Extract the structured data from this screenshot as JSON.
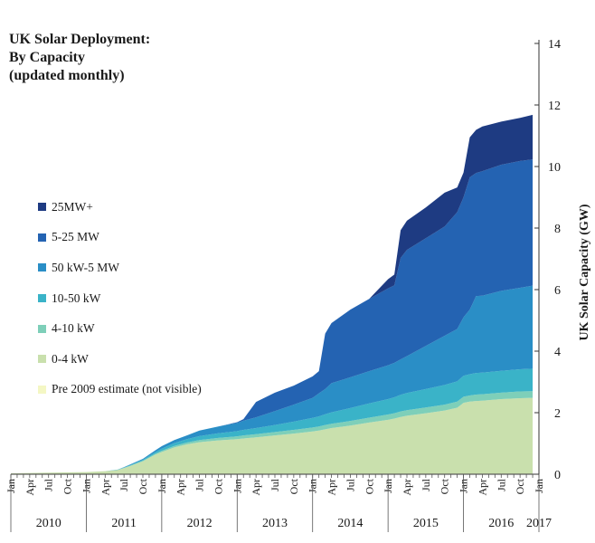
{
  "chart_data": {
    "type": "area",
    "stacked": true,
    "title_lines": [
      "UK Solar Deployment:",
      "By Capacity",
      "(updated monthly)"
    ],
    "ylabel": "UK Solar Capacity (GW)",
    "ylim": [
      0,
      14
    ],
    "yticks": [
      0,
      2,
      4,
      6,
      8,
      10,
      12,
      14
    ],
    "y_axis_side": "right",
    "grid": false,
    "legend_position": "left-middle",
    "month_ticks": [
      "Jan",
      "Apr",
      "Jul",
      "Oct",
      "Jan",
      "Apr",
      "Jul",
      "Oct",
      "Jan",
      "Apr",
      "Jul",
      "Oct",
      "Jan",
      "Apr",
      "Jul",
      "Oct",
      "Jan",
      "Apr",
      "Jul",
      "Oct",
      "Jan",
      "Apr",
      "Jul",
      "Oct",
      "Jan",
      "Apr",
      "Jul",
      "Oct",
      "Jan"
    ],
    "years": [
      "2010",
      "2011",
      "2012",
      "2013",
      "2014",
      "2015",
      "2016",
      "2017"
    ],
    "x": [
      "2010-01",
      "2010-07",
      "2011-01",
      "2011-04",
      "2011-06",
      "2011-07",
      "2011-08",
      "2011-10",
      "2011-12",
      "2012-01",
      "2012-03",
      "2012-05",
      "2012-07",
      "2012-10",
      "2013-01",
      "2013-02",
      "2013-04",
      "2013-07",
      "2013-10",
      "2014-01",
      "2014-02",
      "2014-03",
      "2014-04",
      "2014-07",
      "2014-10",
      "2015-01",
      "2015-02",
      "2015-03",
      "2015-04",
      "2015-07",
      "2015-10",
      "2015-12",
      "2016-01",
      "2016-02",
      "2016-03",
      "2016-04",
      "2016-07",
      "2016-10",
      "2016-12"
    ],
    "series": [
      {
        "name": "Pre 2009 estimate (not visible)",
        "color": "#f4f7c4",
        "values": [
          0.02,
          0.02,
          0.02,
          0.02,
          0.02,
          0.02,
          0.02,
          0.02,
          0.02,
          0.02,
          0.02,
          0.02,
          0.02,
          0.02,
          0.02,
          0.02,
          0.02,
          0.02,
          0.02,
          0.02,
          0.02,
          0.02,
          0.02,
          0.02,
          0.02,
          0.02,
          0.02,
          0.02,
          0.02,
          0.02,
          0.02,
          0.02,
          0.02,
          0.02,
          0.02,
          0.02,
          0.02,
          0.02,
          0.02
        ]
      },
      {
        "name": "0-4 kW",
        "color": "#c9e0ad",
        "values": [
          0.01,
          0.03,
          0.05,
          0.08,
          0.12,
          0.18,
          0.25,
          0.4,
          0.62,
          0.7,
          0.85,
          0.95,
          1.02,
          1.08,
          1.12,
          1.14,
          1.18,
          1.24,
          1.3,
          1.37,
          1.4,
          1.44,
          1.48,
          1.56,
          1.66,
          1.75,
          1.79,
          1.84,
          1.88,
          1.96,
          2.05,
          2.14,
          2.3,
          2.34,
          2.36,
          2.37,
          2.42,
          2.45,
          2.46
        ]
      },
      {
        "name": "4-10 kW",
        "color": "#7ecfb9",
        "values": [
          0,
          0,
          0,
          0,
          0,
          0.01,
          0.01,
          0.02,
          0.03,
          0.04,
          0.05,
          0.06,
          0.07,
          0.08,
          0.09,
          0.1,
          0.1,
          0.11,
          0.12,
          0.13,
          0.13,
          0.14,
          0.14,
          0.15,
          0.16,
          0.17,
          0.17,
          0.18,
          0.18,
          0.19,
          0.19,
          0.2,
          0.2,
          0.2,
          0.21,
          0.21,
          0.21,
          0.22,
          0.22
        ]
      },
      {
        "name": "10-50 kW",
        "color": "#3ab3c8",
        "values": [
          0,
          0,
          0,
          0,
          0.01,
          0.01,
          0.02,
          0.03,
          0.05,
          0.07,
          0.09,
          0.11,
          0.13,
          0.15,
          0.17,
          0.18,
          0.2,
          0.23,
          0.27,
          0.31,
          0.33,
          0.35,
          0.37,
          0.42,
          0.46,
          0.5,
          0.52,
          0.54,
          0.56,
          0.6,
          0.64,
          0.66,
          0.68,
          0.69,
          0.7,
          0.7,
          0.71,
          0.72,
          0.73
        ]
      },
      {
        "name": "50 kW-5 MW",
        "color": "#2a8ec6",
        "values": [
          0,
          0,
          0,
          0,
          0,
          0.01,
          0.02,
          0.03,
          0.06,
          0.08,
          0.1,
          0.12,
          0.18,
          0.22,
          0.27,
          0.3,
          0.35,
          0.45,
          0.55,
          0.65,
          0.75,
          0.82,
          0.95,
          1.0,
          1.05,
          1.1,
          1.12,
          1.15,
          1.2,
          1.4,
          1.6,
          1.7,
          1.9,
          2.1,
          2.5,
          2.5,
          2.6,
          2.65,
          2.7
        ]
      },
      {
        "name": "5-25 MW",
        "color": "#2463b2",
        "values": [
          0,
          0,
          0,
          0,
          0,
          0,
          0,
          0,
          0,
          0,
          0,
          0,
          0,
          0,
          0.02,
          0.05,
          0.5,
          0.6,
          0.62,
          0.7,
          0.72,
          1.8,
          1.95,
          2.2,
          2.35,
          2.5,
          2.52,
          3.3,
          3.45,
          3.5,
          3.55,
          3.8,
          3.9,
          4.3,
          4.0,
          4.05,
          4.1,
          4.12,
          4.1
        ]
      },
      {
        "name": "25MW+",
        "color": "#1e3b82",
        "values": [
          0,
          0,
          0,
          0,
          0,
          0,
          0,
          0,
          0,
          0,
          0,
          0,
          0,
          0,
          0,
          0,
          0,
          0,
          0,
          0,
          0,
          0,
          0,
          0,
          0,
          0.3,
          0.35,
          0.9,
          0.95,
          1.0,
          1.1,
          0.8,
          0.8,
          1.3,
          1.4,
          1.45,
          1.4,
          1.4,
          1.45
        ]
      }
    ]
  }
}
